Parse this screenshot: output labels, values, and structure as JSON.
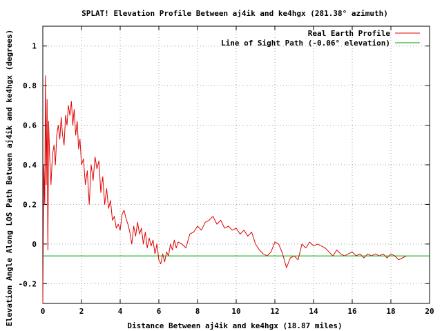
{
  "chart_data": {
    "type": "line",
    "title": "SPLAT! Elevation Profile Between aj4ik and ke4hgx (281.38° azimuth)",
    "xlabel": "Distance Between aj4ik and ke4hgx (18.87 miles)",
    "ylabel": "Elevation Angle Along LOS Path Between aj4ik and ke4hgx (degrees)",
    "xlim": [
      0,
      20
    ],
    "ylim": [
      -0.3,
      1.1
    ],
    "xticks": [
      "0",
      "2",
      "4",
      "6",
      "8",
      "10",
      "12",
      "14",
      "16",
      "18",
      "20"
    ],
    "yticks": [
      "-0.2",
      "0",
      "0.2",
      "0.4",
      "0.6",
      "0.8",
      "1"
    ],
    "grid": true,
    "legend_position": "top-right",
    "series": [
      {
        "name": "Real Earth Profile",
        "color": "#e00000",
        "x": [
          0.0,
          0.05,
          0.1,
          0.14,
          0.18,
          0.22,
          0.26,
          0.3,
          0.35,
          0.42,
          0.5,
          0.58,
          0.65,
          0.72,
          0.8,
          0.88,
          0.95,
          1.02,
          1.1,
          1.18,
          1.25,
          1.32,
          1.4,
          1.48,
          1.55,
          1.62,
          1.7,
          1.78,
          1.85,
          1.92,
          2.0,
          2.1,
          2.2,
          2.3,
          2.4,
          2.5,
          2.6,
          2.7,
          2.8,
          2.9,
          3.0,
          3.1,
          3.2,
          3.3,
          3.4,
          3.5,
          3.6,
          3.7,
          3.8,
          3.9,
          4.0,
          4.1,
          4.2,
          4.3,
          4.4,
          4.5,
          4.6,
          4.7,
          4.8,
          4.9,
          5.0,
          5.1,
          5.2,
          5.3,
          5.4,
          5.5,
          5.6,
          5.7,
          5.8,
          5.9,
          6.0,
          6.1,
          6.2,
          6.3,
          6.4,
          6.5,
          6.6,
          6.7,
          6.8,
          6.9,
          7.0,
          7.2,
          7.4,
          7.6,
          7.8,
          8.0,
          8.2,
          8.4,
          8.6,
          8.8,
          9.0,
          9.2,
          9.4,
          9.6,
          9.8,
          10.0,
          10.2,
          10.4,
          10.6,
          10.8,
          11.0,
          11.2,
          11.4,
          11.6,
          11.8,
          12.0,
          12.2,
          12.4,
          12.6,
          12.8,
          13.0,
          13.2,
          13.4,
          13.6,
          13.8,
          14.0,
          14.2,
          14.4,
          14.6,
          14.8,
          15.0,
          15.2,
          15.4,
          15.6,
          15.8,
          16.0,
          16.2,
          16.4,
          16.6,
          16.8,
          17.0,
          17.2,
          17.4,
          17.6,
          17.8,
          18.0,
          18.2,
          18.4,
          18.6,
          18.8
        ],
        "y": [
          -0.3,
          0.4,
          0.2,
          0.85,
          0.3,
          0.73,
          -0.03,
          0.62,
          0.45,
          0.3,
          0.45,
          0.5,
          0.4,
          0.55,
          0.6,
          0.53,
          0.64,
          0.55,
          0.5,
          0.65,
          0.6,
          0.7,
          0.65,
          0.72,
          0.6,
          0.68,
          0.55,
          0.62,
          0.48,
          0.53,
          0.4,
          0.43,
          0.3,
          0.37,
          0.2,
          0.4,
          0.32,
          0.44,
          0.38,
          0.42,
          0.26,
          0.34,
          0.2,
          0.28,
          0.18,
          0.22,
          0.12,
          0.14,
          0.08,
          0.1,
          0.07,
          0.15,
          0.17,
          0.13,
          0.1,
          0.06,
          0.0,
          0.09,
          0.04,
          0.11,
          0.05,
          0.08,
          0.0,
          0.06,
          -0.02,
          0.03,
          -0.01,
          0.02,
          -0.05,
          0.0,
          -0.08,
          -0.1,
          -0.05,
          -0.09,
          -0.04,
          -0.06,
          0.0,
          -0.03,
          0.02,
          -0.02,
          0.01,
          0.0,
          -0.02,
          0.05,
          0.06,
          0.09,
          0.07,
          0.11,
          0.12,
          0.14,
          0.1,
          0.12,
          0.08,
          0.09,
          0.07,
          0.08,
          0.05,
          0.07,
          0.04,
          0.06,
          0.0,
          -0.03,
          -0.05,
          -0.06,
          -0.04,
          0.01,
          0.0,
          -0.05,
          -0.12,
          -0.07,
          -0.06,
          -0.08,
          0.0,
          -0.02,
          0.01,
          -0.01,
          0.0,
          -0.01,
          -0.02,
          -0.04,
          -0.06,
          -0.03,
          -0.05,
          -0.06,
          -0.05,
          -0.04,
          -0.06,
          -0.05,
          -0.07,
          -0.05,
          -0.06,
          -0.05,
          -0.06,
          -0.05,
          -0.07,
          -0.05,
          -0.06,
          -0.08,
          -0.07,
          -0.06
        ]
      },
      {
        "name": "Line of Sight Path (-0.06° elevation)",
        "color": "#00a000",
        "x": [
          0,
          20
        ],
        "y": [
          -0.06,
          -0.06
        ]
      }
    ]
  }
}
